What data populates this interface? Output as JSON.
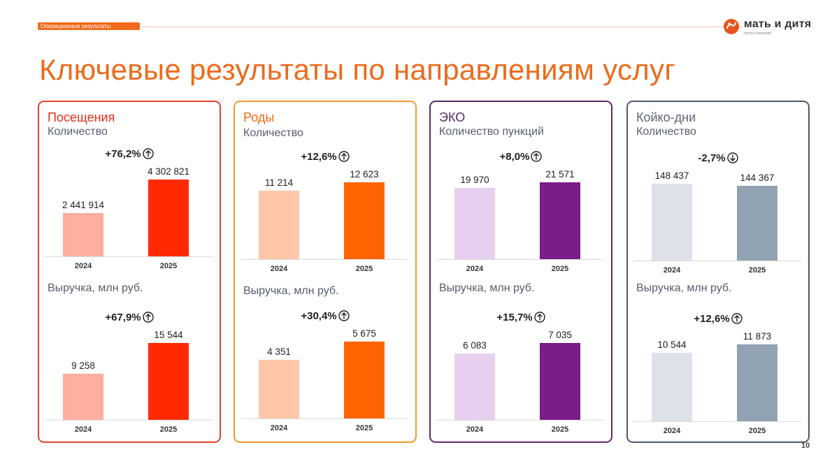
{
  "header": {
    "section_tag": "Операционные результаты",
    "logo_name": "мать и дитя",
    "logo_sub": "группа компаний"
  },
  "page_title": "Ключевые результаты по направлениям услуг",
  "colors": {
    "orange": "#ec6b1c",
    "red": "#ff2a00",
    "red_light": "#ffaea0",
    "red_border": "#e2432a",
    "orange_dark": "#ff6400",
    "peach": "#ffc7a8",
    "orange_border": "#f29a2c",
    "purple": "#7a1c8a",
    "lavender": "#e7d0ef",
    "purple_border": "#5a2a6a",
    "slate": "#91a2b3",
    "slate_light": "#dde2e8",
    "slate_border": "#4a5a70"
  },
  "cards": [
    {
      "title": "Посещения",
      "title_color": "#e2321c",
      "border_color": "#e2432a",
      "metrics": [
        {
          "label": "Количество",
          "badge": "+76,2%",
          "trend": "up",
          "years": [
            "2024",
            "2025"
          ],
          "value_labels": [
            "2 441 914",
            "4 302 821"
          ],
          "values": [
            2441914,
            4302821
          ],
          "bar_colors": [
            "#ffaea0",
            "#ff2a00"
          ]
        },
        {
          "label": "Выручка, млн руб.",
          "badge": "+67,9%",
          "trend": "up",
          "years": [
            "2024",
            "2025"
          ],
          "value_labels": [
            "9 258",
            "15 544"
          ],
          "values": [
            9258,
            15544
          ],
          "bar_colors": [
            "#ffaea0",
            "#ff2a00"
          ]
        }
      ]
    },
    {
      "title": "Роды",
      "title_color": "#ee6a12",
      "border_color": "#f29a2c",
      "metrics": [
        {
          "label": "Количество",
          "badge": "+12,6%",
          "trend": "up",
          "years": [
            "2024",
            "2025"
          ],
          "value_labels": [
            "11 214",
            "12 623"
          ],
          "values": [
            11214,
            12623
          ],
          "bar_colors": [
            "#ffc7a8",
            "#ff6400"
          ]
        },
        {
          "label": "Выручка, млн руб.",
          "badge": "+30,4%",
          "trend": "up",
          "years": [
            "2024",
            "2025"
          ],
          "value_labels": [
            "4 351",
            "5 675"
          ],
          "values": [
            4351,
            5675
          ],
          "bar_colors": [
            "#ffc7a8",
            "#ff6400"
          ]
        }
      ]
    },
    {
      "title": "ЭКО",
      "title_color": "#5a2a6a",
      "border_color": "#5a2a6a",
      "metrics": [
        {
          "label": "Количество пункций",
          "badge": "+8,0%",
          "trend": "up",
          "years": [
            "2024",
            "2025"
          ],
          "value_labels": [
            "19 970",
            "21 571"
          ],
          "values": [
            19970,
            21571
          ],
          "bar_colors": [
            "#e7d0ef",
            "#7a1c8a"
          ]
        },
        {
          "label": "Выручка, млн руб.",
          "badge": "+15,7%",
          "trend": "up",
          "years": [
            "2024",
            "2025"
          ],
          "value_labels": [
            "6 083",
            "7 035"
          ],
          "values": [
            6083,
            7035
          ],
          "bar_colors": [
            "#e7d0ef",
            "#7a1c8a"
          ]
        }
      ]
    },
    {
      "title": "Койко-дни",
      "title_color": "#5c6676",
      "border_color": "#4a5a70",
      "metrics": [
        {
          "label": "Количество",
          "badge": "-2,7%",
          "trend": "down",
          "years": [
            "2024",
            "2025"
          ],
          "value_labels": [
            "148 437",
            "144 367"
          ],
          "values": [
            148437,
            144367
          ],
          "bar_colors": [
            "#dde2e8",
            "#91a2b3"
          ]
        },
        {
          "label": "Выручка, млн руб.",
          "badge": "+12,6%",
          "trend": "up",
          "years": [
            "2024",
            "2025"
          ],
          "value_labels": [
            "10 544",
            "11 873"
          ],
          "values": [
            10544,
            11873
          ],
          "bar_colors": [
            "#dde2e8",
            "#91a2b3"
          ]
        }
      ]
    }
  ],
  "chart_data": [
    {
      "type": "bar",
      "title": "Посещения — Количество",
      "categories": [
        "2024",
        "2025"
      ],
      "values": [
        2441914,
        4302821
      ],
      "annotation": "+76,2%"
    },
    {
      "type": "bar",
      "title": "Посещения — Выручка, млн руб.",
      "categories": [
        "2024",
        "2025"
      ],
      "values": [
        9258,
        15544
      ],
      "annotation": "+67,9%"
    },
    {
      "type": "bar",
      "title": "Роды — Количество",
      "categories": [
        "2024",
        "2025"
      ],
      "values": [
        11214,
        12623
      ],
      "annotation": "+12,6%"
    },
    {
      "type": "bar",
      "title": "Роды — Выручка, млн руб.",
      "categories": [
        "2024",
        "2025"
      ],
      "values": [
        4351,
        5675
      ],
      "annotation": "+30,4%"
    },
    {
      "type": "bar",
      "title": "ЭКО — Количество пункций",
      "categories": [
        "2024",
        "2025"
      ],
      "values": [
        19970,
        21571
      ],
      "annotation": "+8,0%"
    },
    {
      "type": "bar",
      "title": "ЭКО — Выручка, млн руб.",
      "categories": [
        "2024",
        "2025"
      ],
      "values": [
        6083,
        7035
      ],
      "annotation": "+15,7%"
    },
    {
      "type": "bar",
      "title": "Койко-дни — Количество",
      "categories": [
        "2024",
        "2025"
      ],
      "values": [
        148437,
        144367
      ],
      "annotation": "-2,7%"
    },
    {
      "type": "bar",
      "title": "Койко-дни — Выручка, млн руб.",
      "categories": [
        "2024",
        "2025"
      ],
      "values": [
        10544,
        11873
      ],
      "annotation": "+12,6%"
    }
  ],
  "page_number": "10"
}
